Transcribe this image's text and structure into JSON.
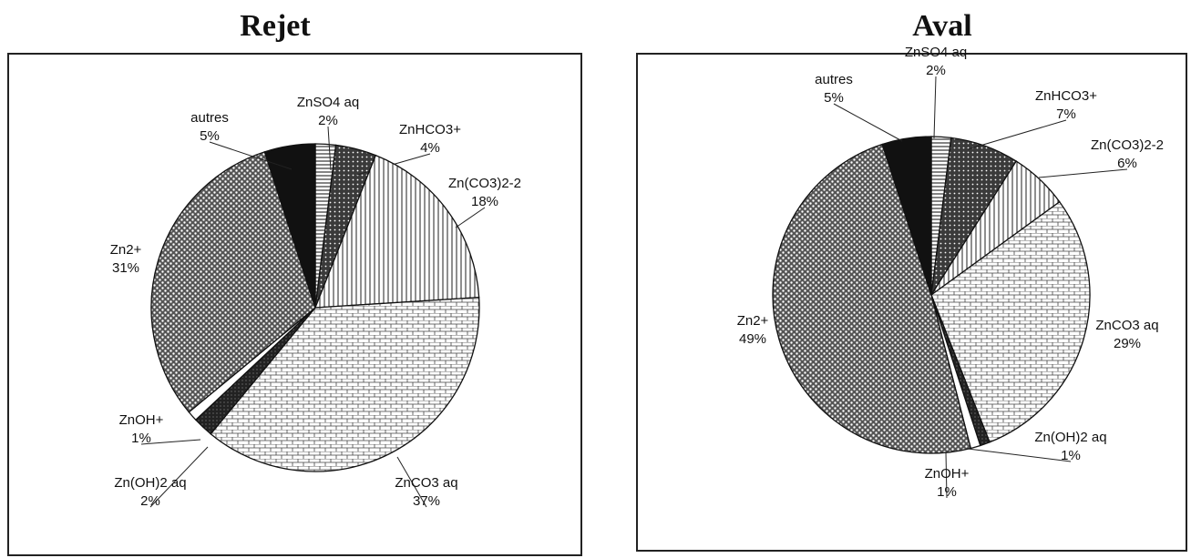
{
  "chart_data": [
    {
      "type": "pie",
      "title": "Rejet",
      "slices": [
        {
          "label": "ZnSO4 aq",
          "value": 2,
          "pct": "2%",
          "pattern": "hstripe"
        },
        {
          "label": "ZnHCO3+",
          "value": 4,
          "pct": "4%",
          "pattern": "darkdots"
        },
        {
          "label": "Zn(CO3)2-2",
          "value": 18,
          "pct": "18%",
          "pattern": "vstripe"
        },
        {
          "label": "ZnCO3 aq",
          "value": 37,
          "pct": "37%",
          "pattern": "brick"
        },
        {
          "label": "Zn(OH)2 aq",
          "value": 2,
          "pct": "2%",
          "pattern": "dark"
        },
        {
          "label": "ZnOH+",
          "value": 1,
          "pct": "1%",
          "pattern": "white"
        },
        {
          "label": "Zn2+",
          "value": 31,
          "pct": "31%",
          "pattern": "dots"
        },
        {
          "label": "autres",
          "value": 5,
          "pct": "5%",
          "pattern": "black"
        }
      ]
    },
    {
      "type": "pie",
      "title": "Aval",
      "slices": [
        {
          "label": "ZnSO4 aq",
          "value": 2,
          "pct": "2%",
          "pattern": "hstripe"
        },
        {
          "label": "ZnHCO3+",
          "value": 7,
          "pct": "7%",
          "pattern": "darkdots"
        },
        {
          "label": "Zn(CO3)2-2",
          "value": 6,
          "pct": "6%",
          "pattern": "vstripe"
        },
        {
          "label": "ZnCO3 aq",
          "value": 29,
          "pct": "29%",
          "pattern": "brick"
        },
        {
          "label": "Zn(OH)2 aq",
          "value": 1,
          "pct": "1%",
          "pattern": "dark"
        },
        {
          "label": "ZnOH+",
          "value": 1,
          "pct": "1%",
          "pattern": "white"
        },
        {
          "label": "Zn2+",
          "value": 49,
          "pct": "49%",
          "pattern": "dots"
        },
        {
          "label": "autres",
          "value": 5,
          "pct": "5%",
          "pattern": "black"
        }
      ]
    }
  ]
}
